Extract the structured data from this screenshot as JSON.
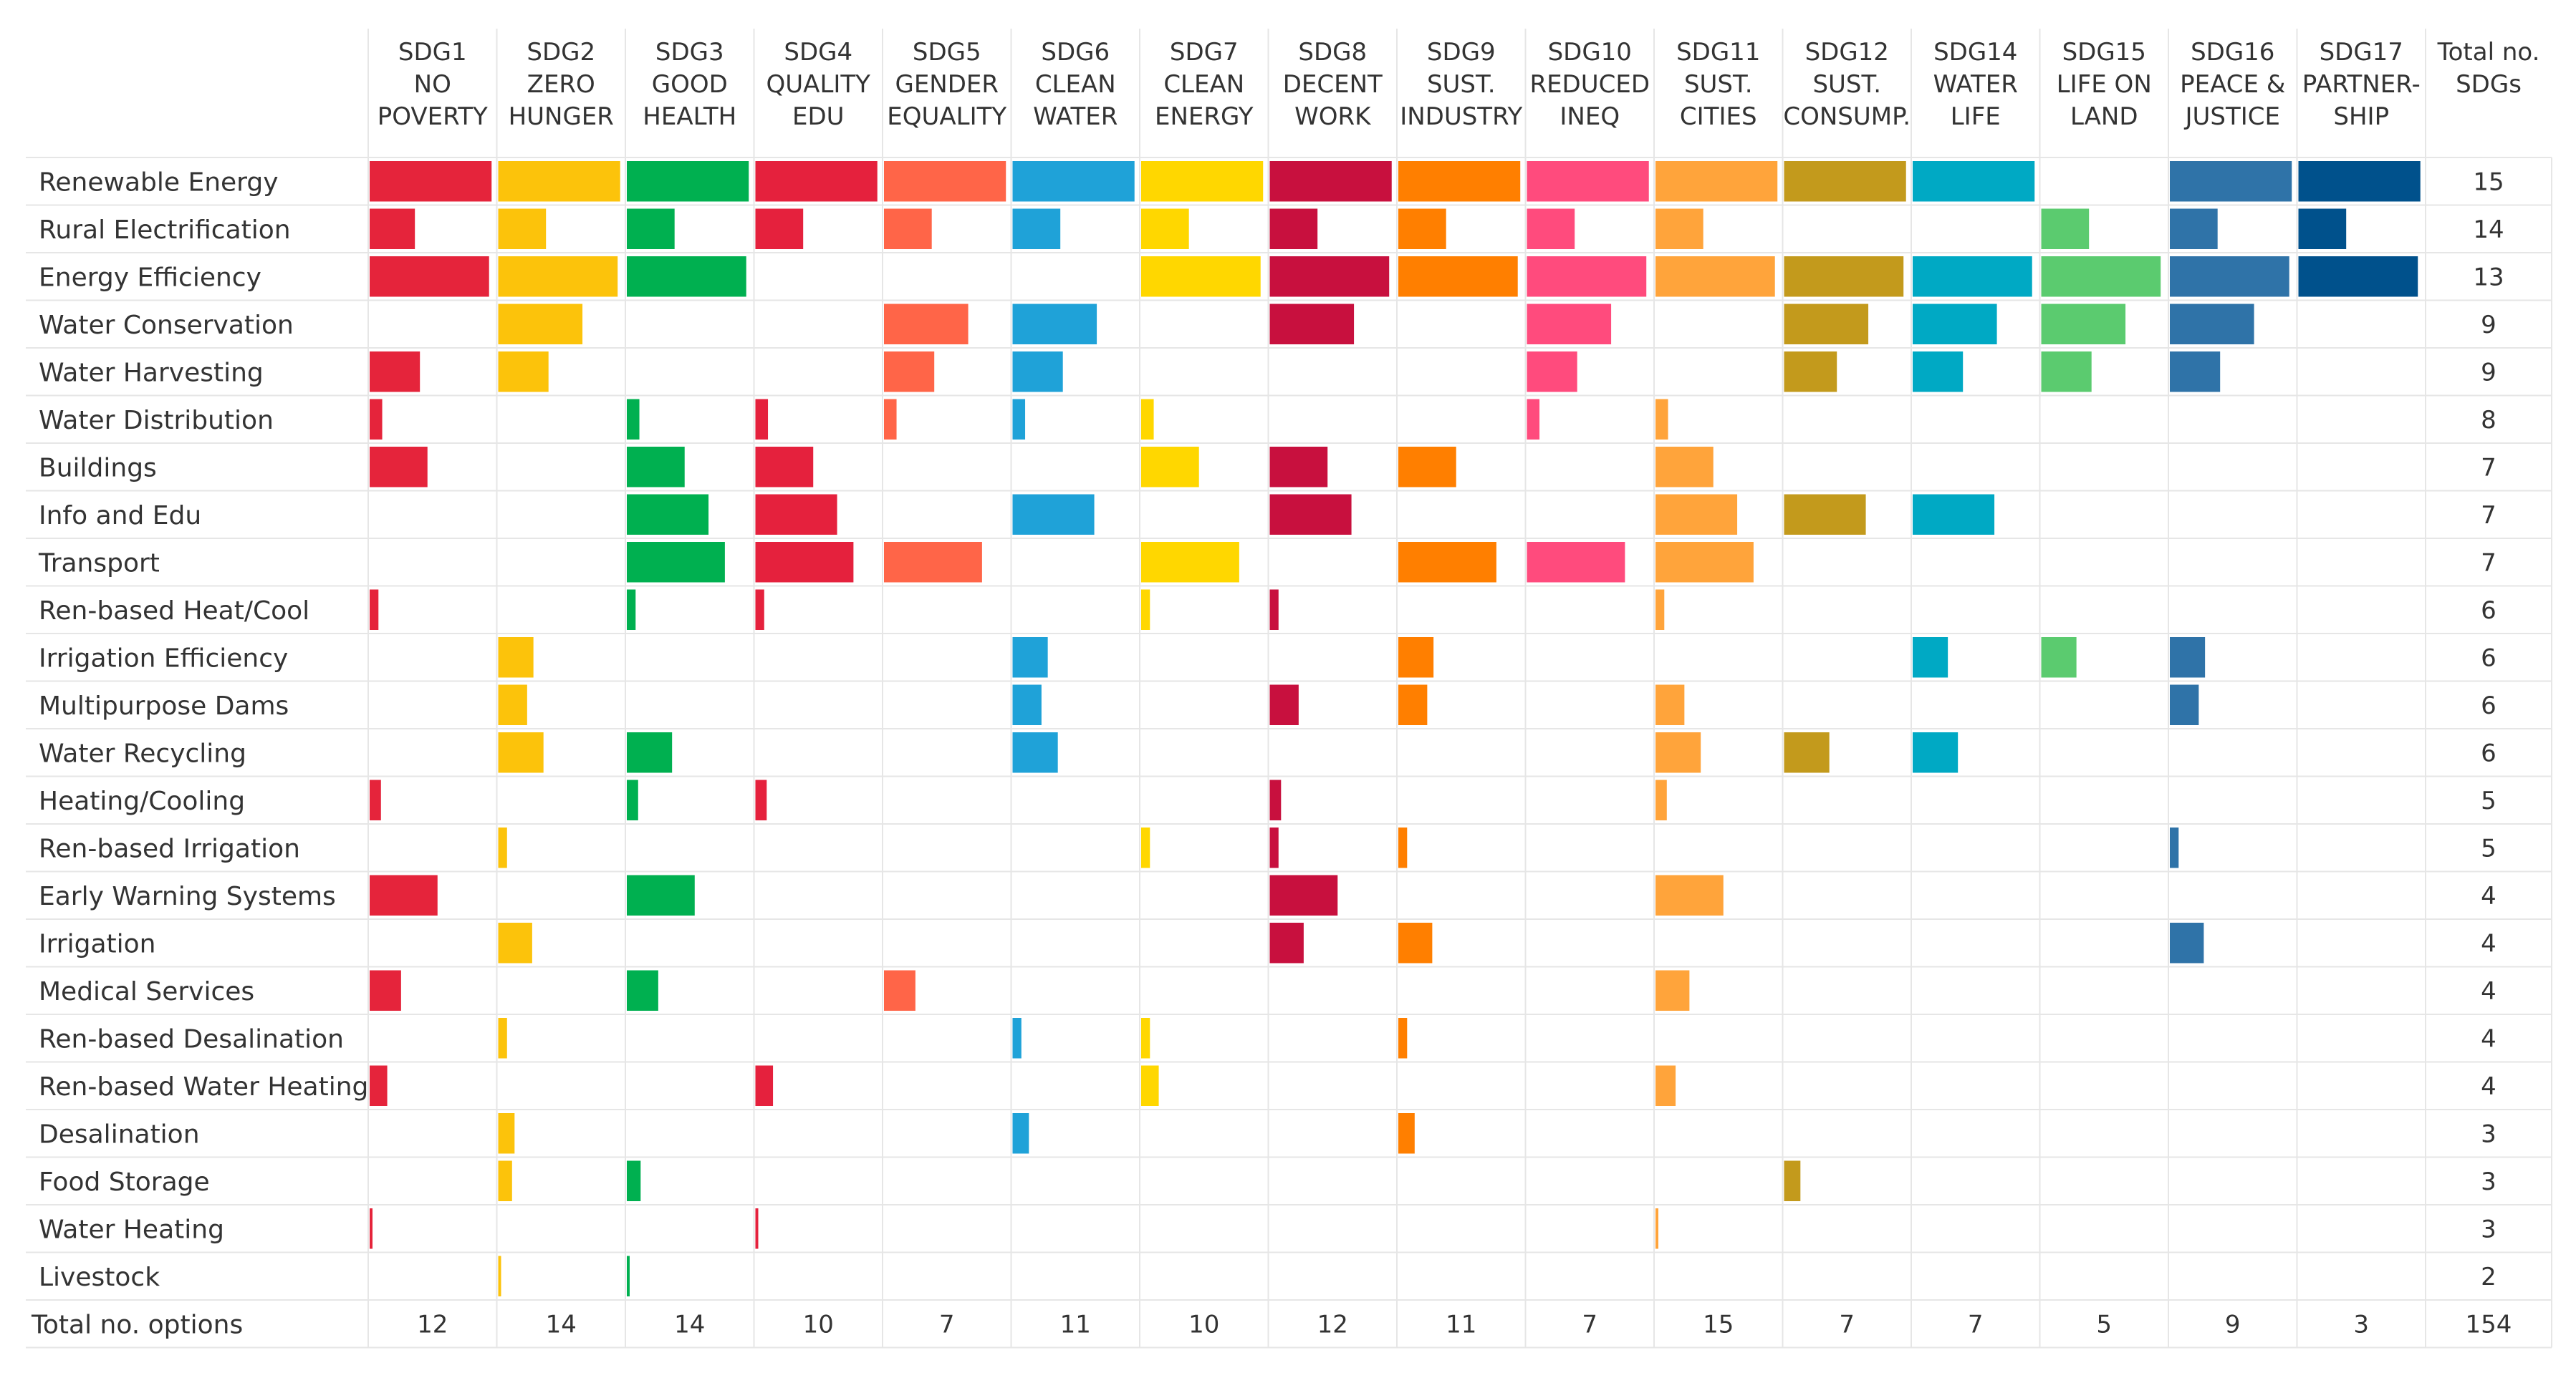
{
  "chart_data": {
    "type": "heatmap",
    "title": "",
    "value_description": "Relative bar length within each SDG cell (0 = empty, 1 = full cell width)",
    "columns": [
      {
        "id": "SDG1",
        "lines": [
          "SDG1",
          "NO",
          "POVERTY"
        ],
        "color": "#E5243B"
      },
      {
        "id": "SDG2",
        "lines": [
          "SDG2",
          "ZERO",
          "HUNGER"
        ],
        "color": "#FCC30B"
      },
      {
        "id": "SDG3",
        "lines": [
          "SDG3",
          "GOOD",
          "HEALTH"
        ],
        "color": "#00B050"
      },
      {
        "id": "SDG4",
        "lines": [
          "SDG4",
          "QUALITY",
          "EDU"
        ],
        "color": "#E5213D"
      },
      {
        "id": "SDG5",
        "lines": [
          "SDG5",
          "GENDER",
          "EQUALITY"
        ],
        "color": "#FF6548"
      },
      {
        "id": "SDG6",
        "lines": [
          "SDG6",
          "CLEAN",
          "WATER"
        ],
        "color": "#1FA2D8"
      },
      {
        "id": "SDG7",
        "lines": [
          "SDG7",
          "CLEAN",
          "ENERGY"
        ],
        "color": "#FFD700"
      },
      {
        "id": "SDG8",
        "lines": [
          "SDG8",
          "DECENT",
          "WORK"
        ],
        "color": "#C8103E"
      },
      {
        "id": "SDG9",
        "lines": [
          "SDG9",
          "SUST.",
          "INDUSTRY"
        ],
        "color": "#FF7F00"
      },
      {
        "id": "SDG10",
        "lines": [
          "SDG10",
          "REDUCED",
          "INEQ"
        ],
        "color": "#FF4B7D"
      },
      {
        "id": "SDG11",
        "lines": [
          "SDG11",
          "SUST.",
          "CITIES"
        ],
        "color": "#FFA43B"
      },
      {
        "id": "SDG12",
        "lines": [
          "SDG12",
          "SUST.",
          "CONSUMP."
        ],
        "color": "#C39A1C"
      },
      {
        "id": "SDG14",
        "lines": [
          "SDG14",
          "WATER",
          "LIFE"
        ],
        "color": "#00A9C4"
      },
      {
        "id": "SDG15",
        "lines": [
          "SDG15",
          "LIFE ON",
          "LAND"
        ],
        "color": "#5BCB6F"
      },
      {
        "id": "SDG16",
        "lines": [
          "SDG16",
          "PEACE &",
          "JUSTICE"
        ],
        "color": "#2F73A8"
      },
      {
        "id": "SDG17",
        "lines": [
          "SDG17",
          "PARTNER-",
          "SHIP"
        ],
        "color": "#00518C"
      }
    ],
    "total_column_lines": [
      "Total no.",
      "SDGs"
    ],
    "rows": [
      {
        "label": "Renewable Energy",
        "values": [
          0.97,
          0.97,
          0.97,
          0.97,
          0.97,
          0.97,
          0.97,
          0.97,
          0.97,
          0.97,
          0.97,
          0.97,
          0.97,
          0,
          0.97,
          0.97
        ],
        "total": "15"
      },
      {
        "label": "Rural Electrification",
        "values": [
          0.36,
          0.38,
          0.38,
          0.38,
          0.38,
          0.38,
          0.38,
          0.38,
          0.38,
          0.38,
          0.38,
          0,
          0,
          0.38,
          0.38,
          0.38
        ],
        "total": "14"
      },
      {
        "label": "Energy Efficiency",
        "values": [
          0.95,
          0.95,
          0.95,
          0,
          0,
          0,
          0.95,
          0.95,
          0.95,
          0.95,
          0.95,
          0.95,
          0.95,
          0.95,
          0.95,
          0.95
        ],
        "total": "13"
      },
      {
        "label": "Water Conservation",
        "values": [
          0,
          0.67,
          0,
          0,
          0.67,
          0.67,
          0,
          0.67,
          0,
          0.67,
          0,
          0.67,
          0.67,
          0.67,
          0.67,
          0
        ],
        "total": "9"
      },
      {
        "label": "Water Harvesting",
        "values": [
          0.4,
          0.4,
          0,
          0,
          0.4,
          0.4,
          0,
          0,
          0,
          0.4,
          0,
          0.42,
          0.4,
          0.4,
          0.4,
          0
        ],
        "total": "9"
      },
      {
        "label": "Water Distribution",
        "values": [
          0.1,
          0,
          0.1,
          0.1,
          0.1,
          0.1,
          0.1,
          0,
          0,
          0.1,
          0.1,
          0,
          0,
          0,
          0,
          0
        ],
        "total": "8"
      },
      {
        "label": "Buildings",
        "values": [
          0.46,
          0,
          0.46,
          0.46,
          0,
          0,
          0.46,
          0.46,
          0.46,
          0,
          0.46,
          0,
          0,
          0,
          0,
          0
        ],
        "total": "7"
      },
      {
        "label": "Info and Edu",
        "values": [
          0,
          0,
          0.65,
          0.65,
          0,
          0.65,
          0,
          0.65,
          0,
          0,
          0.65,
          0.65,
          0.65,
          0,
          0,
          0
        ],
        "total": "7"
      },
      {
        "label": "Transport",
        "values": [
          0,
          0,
          0.78,
          0.78,
          0.78,
          0,
          0.78,
          0,
          0.78,
          0.78,
          0.78,
          0,
          0,
          0,
          0,
          0
        ],
        "total": "7"
      },
      {
        "label": "Ren-based Heat/Cool",
        "values": [
          0.07,
          0,
          0.07,
          0.07,
          0,
          0,
          0.07,
          0.07,
          0,
          0,
          0.07,
          0,
          0,
          0,
          0,
          0
        ],
        "total": "6"
      },
      {
        "label": "Irrigation Efficiency",
        "values": [
          0,
          0.28,
          0,
          0,
          0,
          0.28,
          0,
          0,
          0.28,
          0,
          0,
          0,
          0.28,
          0.28,
          0.28,
          0
        ],
        "total": "6"
      },
      {
        "label": "Multipurpose Dams",
        "values": [
          0,
          0.23,
          0,
          0,
          0,
          0.23,
          0,
          0.23,
          0.23,
          0,
          0.23,
          0,
          0,
          0,
          0.23,
          0
        ],
        "total": "6"
      },
      {
        "label": "Water Recycling",
        "values": [
          0,
          0.36,
          0.36,
          0,
          0,
          0.36,
          0,
          0,
          0,
          0,
          0.36,
          0.36,
          0.36,
          0,
          0,
          0
        ],
        "total": "6"
      },
      {
        "label": "Heating/Cooling",
        "values": [
          0.09,
          0,
          0.09,
          0.09,
          0,
          0,
          0,
          0.09,
          0,
          0,
          0.09,
          0,
          0,
          0,
          0,
          0
        ],
        "total": "5"
      },
      {
        "label": "Ren-based Irrigation",
        "values": [
          0,
          0.07,
          0,
          0,
          0,
          0,
          0.07,
          0.07,
          0.07,
          0,
          0,
          0,
          0,
          0,
          0.07,
          0
        ],
        "total": "5"
      },
      {
        "label": "Early Warning Systems",
        "values": [
          0.54,
          0,
          0.54,
          0,
          0,
          0,
          0,
          0.54,
          0,
          0,
          0.54,
          0,
          0,
          0,
          0,
          0
        ],
        "total": "4"
      },
      {
        "label": "Irrigation",
        "values": [
          0,
          0.27,
          0,
          0,
          0,
          0,
          0,
          0.27,
          0.27,
          0,
          0,
          0,
          0,
          0,
          0.27,
          0
        ],
        "total": "4"
      },
      {
        "label": "Medical Services",
        "values": [
          0.25,
          0,
          0.25,
          0,
          0.25,
          0,
          0,
          0,
          0,
          0,
          0.27,
          0,
          0,
          0,
          0,
          0
        ],
        "total": "4"
      },
      {
        "label": "Ren-based Desalination",
        "values": [
          0,
          0.07,
          0,
          0,
          0,
          0.07,
          0.07,
          0,
          0.07,
          0,
          0,
          0,
          0,
          0,
          0,
          0
        ],
        "total": "4"
      },
      {
        "label": "Ren-based Water Heating",
        "values": [
          0.14,
          0,
          0,
          0.14,
          0,
          0,
          0.14,
          0,
          0,
          0,
          0.16,
          0,
          0,
          0,
          0,
          0
        ],
        "total": "4"
      },
      {
        "label": "Desalination",
        "values": [
          0,
          0.13,
          0,
          0,
          0,
          0.13,
          0,
          0,
          0.13,
          0,
          0,
          0,
          0,
          0,
          0,
          0
        ],
        "total": "3"
      },
      {
        "label": "Food Storage",
        "values": [
          0,
          0.11,
          0.11,
          0,
          0,
          0,
          0,
          0,
          0,
          0,
          0,
          0.13,
          0,
          0,
          0,
          0
        ],
        "total": "3"
      },
      {
        "label": "Water Heating",
        "values": [
          0.02,
          0,
          0,
          0.02,
          0,
          0,
          0,
          0,
          0,
          0,
          0.02,
          0,
          0,
          0,
          0,
          0
        ],
        "total": "3"
      },
      {
        "label": "Livestock",
        "values": [
          0,
          0.02,
          0.02,
          0,
          0,
          0,
          0,
          0,
          0,
          0,
          0,
          0,
          0,
          0,
          0,
          0
        ],
        "total": "2"
      }
    ],
    "footer": {
      "label": "Total no. options",
      "values": [
        "12",
        "14",
        "14",
        "10",
        "7",
        "11",
        "10",
        "12",
        "11",
        "7",
        "15",
        "7",
        "7",
        "5",
        "9",
        "3"
      ],
      "grand_total": "154"
    }
  }
}
